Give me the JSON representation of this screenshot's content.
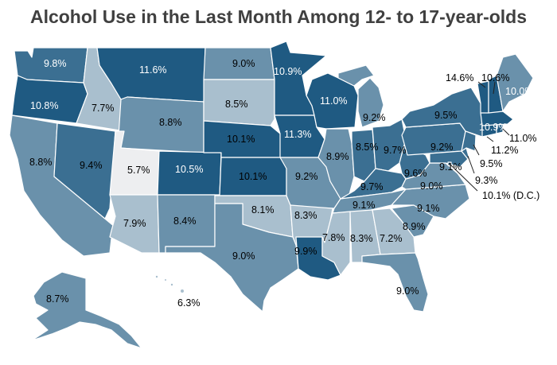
{
  "title": "Alcohol Use in the Last Month Among 12- to 17-year-olds",
  "colors": {
    "darkest": "#1f5a82",
    "dark": "#3b6f92",
    "mid": "#6a91ab",
    "light": "#a9bfce",
    "lightest": "#edeef0"
  },
  "states": {
    "WA": "9.8%",
    "OR": "10.8%",
    "CA": "8.8%",
    "ID": "7.7%",
    "NV": "9.4%",
    "MT": "11.6%",
    "WY": "8.8%",
    "UT": "5.7%",
    "AZ": "7.9%",
    "CO": "10.5%",
    "NM": "8.4%",
    "ND": "9.0%",
    "SD": "8.5%",
    "NE": "10.1%",
    "KS": "10.1%",
    "OK": "8.1%",
    "TX": "9.0%",
    "MN": "10.9%",
    "IA": "11.3%",
    "MO": "9.2%",
    "AR": "8.3%",
    "LA": "9.9%",
    "WI": "11.0%",
    "IL": "8.9%",
    "MI": "9.2%",
    "IN": "8.5%",
    "OH": "9.7%",
    "KY": "9.7%",
    "TN": "9.1%",
    "MS": "7.8%",
    "AL": "8.3%",
    "GA": "7.2%",
    "FL": "9.0%",
    "SC": "8.9%",
    "NC": "9.1%",
    "VA": "9.0%",
    "WV": "9.6%",
    "PA": "9.2%",
    "NY": "9.5%",
    "ME": "10.0%",
    "VT": "14.6%",
    "NH": "10.6%",
    "MA": "10.9%",
    "RI": "11.0%",
    "CT": "11.2%",
    "NJ": "9.5%",
    "DE": "9.3%",
    "MD": "9.1%",
    "DC": "10.1% (D.C.)",
    "AK": "8.7%",
    "HI": "6.3%"
  }
}
